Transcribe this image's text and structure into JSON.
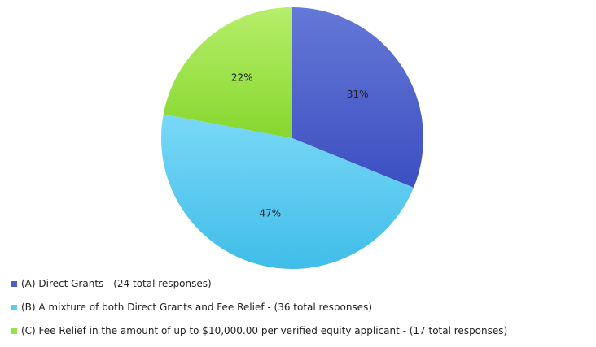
{
  "chart_data": {
    "type": "pie",
    "title": "",
    "categories": [
      "(A) Direct Grants - (24 total responses)",
      "(B) A mixture of both Direct Grants and Fee Relief - (36 total responses)",
      "(C) Fee Relief in the amount of up to $10,000.00 per verified equity applicant - (17 total responses)"
    ],
    "values": [
      24,
      36,
      17
    ],
    "percent_labels": [
      "31%",
      "47%",
      "22%"
    ],
    "colors": [
      "#4a5fcf",
      "#5ccaf2",
      "#9be24a"
    ],
    "legend_position": "bottom-left",
    "start_angle": "12 o'clock",
    "direction": "clockwise"
  }
}
